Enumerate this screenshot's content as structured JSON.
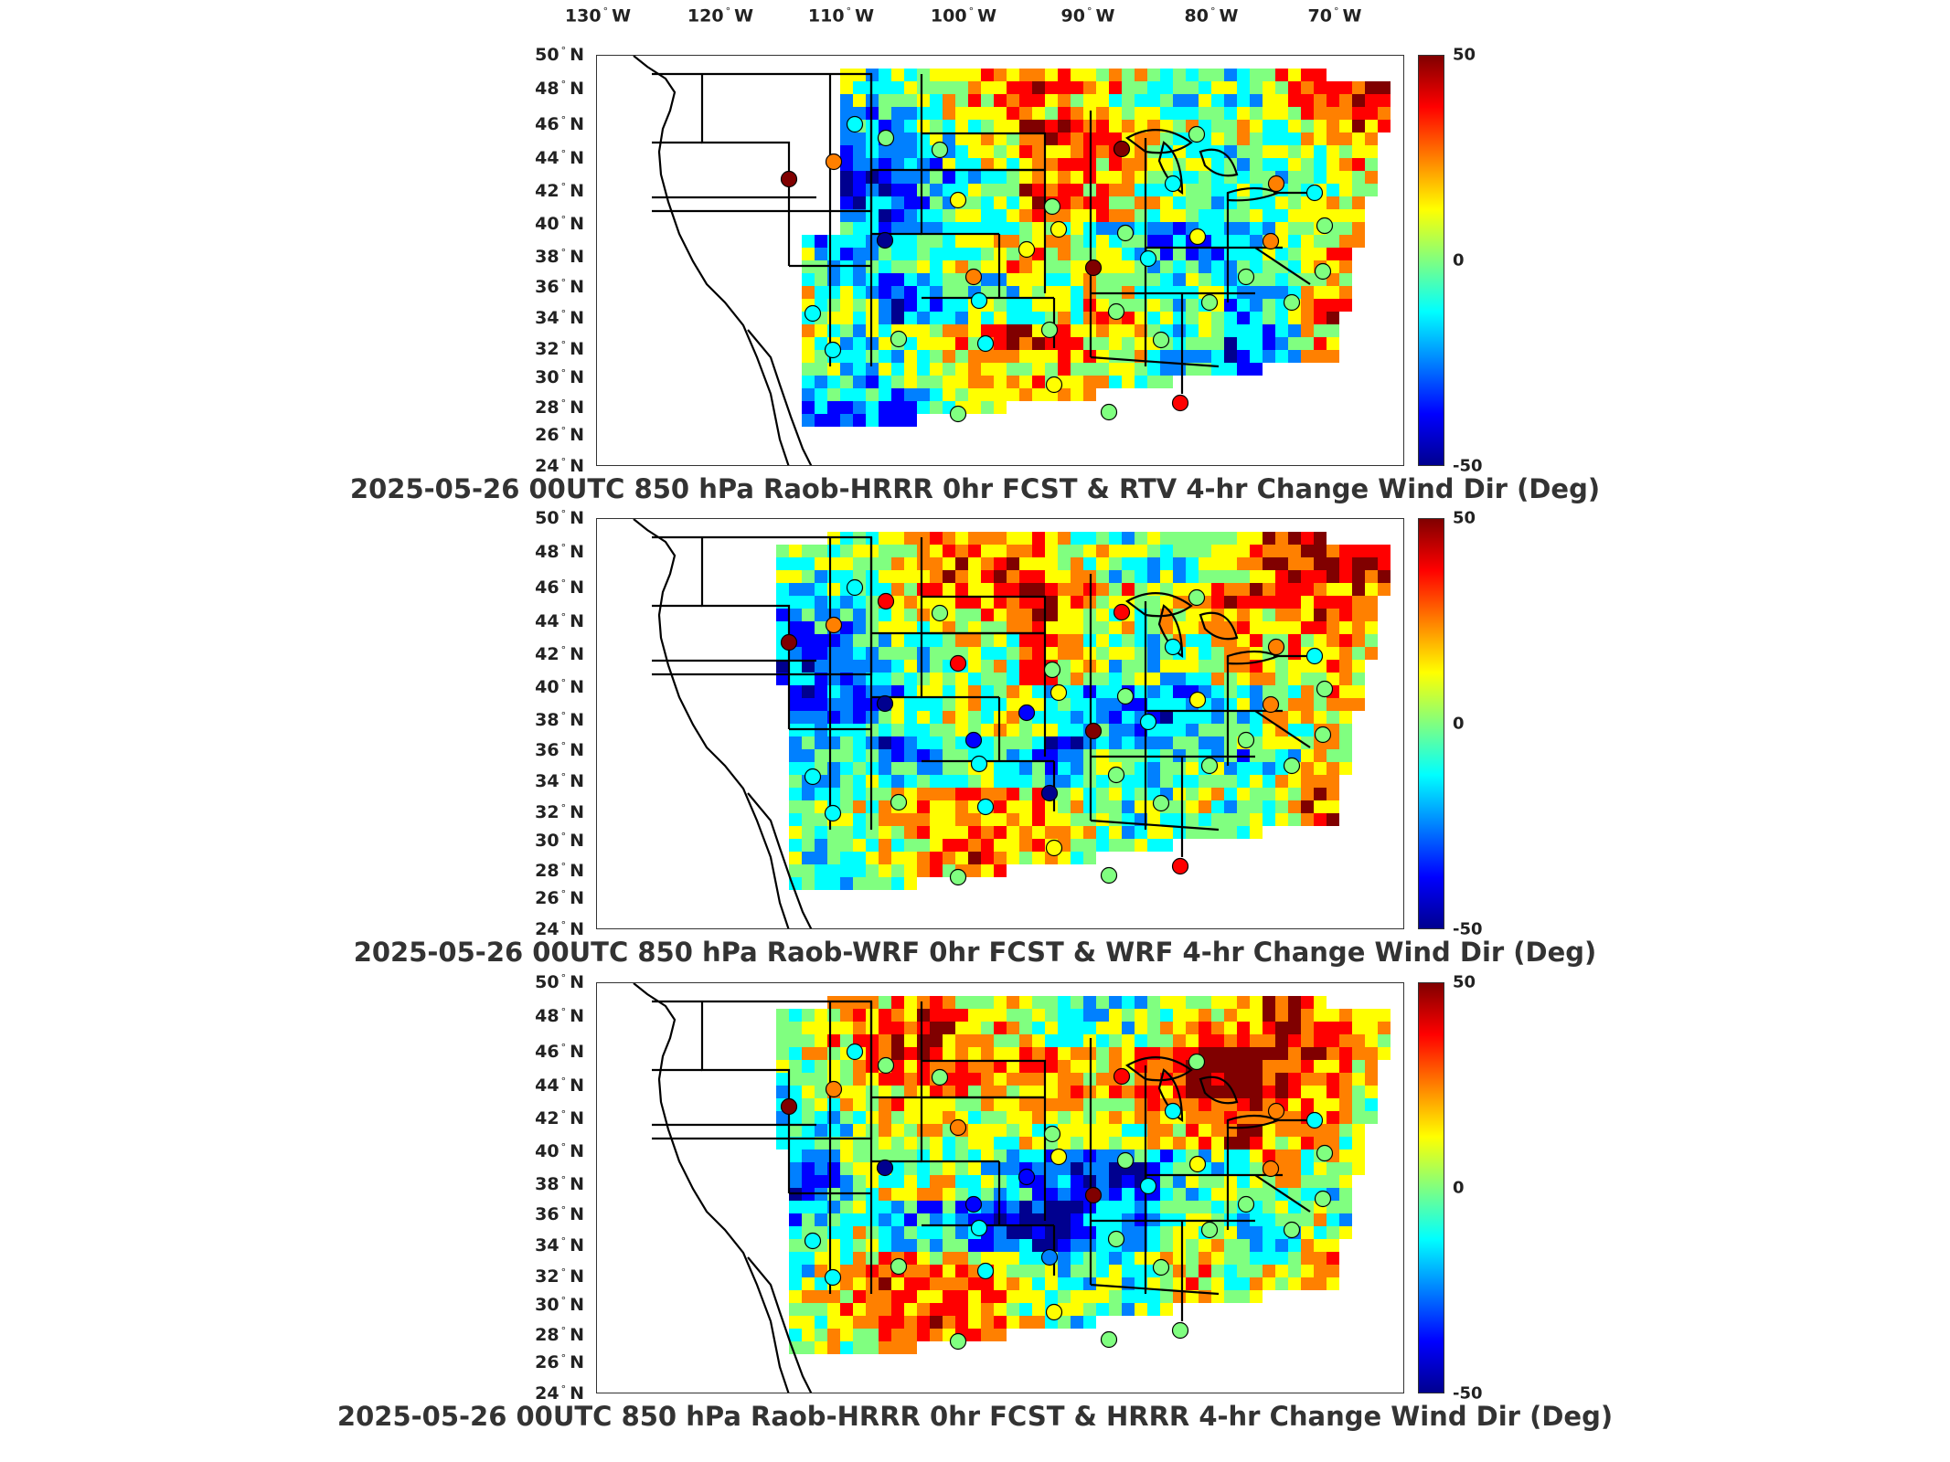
{
  "longitude_labels": [
    "130",
    "120",
    "110",
    "100",
    "90",
    "80",
    "70"
  ],
  "longitude_hemisphere": "W",
  "latitude_labels": [
    "50",
    "48",
    "46",
    "44",
    "42",
    "40",
    "38",
    "36",
    "34",
    "32",
    "30",
    "28",
    "26",
    "24"
  ],
  "latitude_hemisphere": "N",
  "colorbar": {
    "max_label": "50",
    "mid_label": "0",
    "min_label": "-50",
    "range": [
      -50,
      50
    ],
    "colormap": [
      "#00008f",
      "#0000ff",
      "#0080ff",
      "#00ffff",
      "#80ff80",
      "#ffff00",
      "#ff8000",
      "#ff0000",
      "#800000"
    ]
  },
  "panels": [
    {
      "title": "2025-05-26 00UTC 850 hPa Raob-HRRR 0hr FCST & RTV 4-hr Change Wind Dir (Deg)"
    },
    {
      "title": "2025-05-26 00UTC 850 hPa Raob-WRF 0hr FCST & WRF 4-hr Change Wind Dir (Deg)"
    },
    {
      "title": "2025-05-26 00UTC 850 hPa Raob-HRRR 0hr FCST & HRRR 4-hr Change Wind Dir (Deg)"
    }
  ]
}
